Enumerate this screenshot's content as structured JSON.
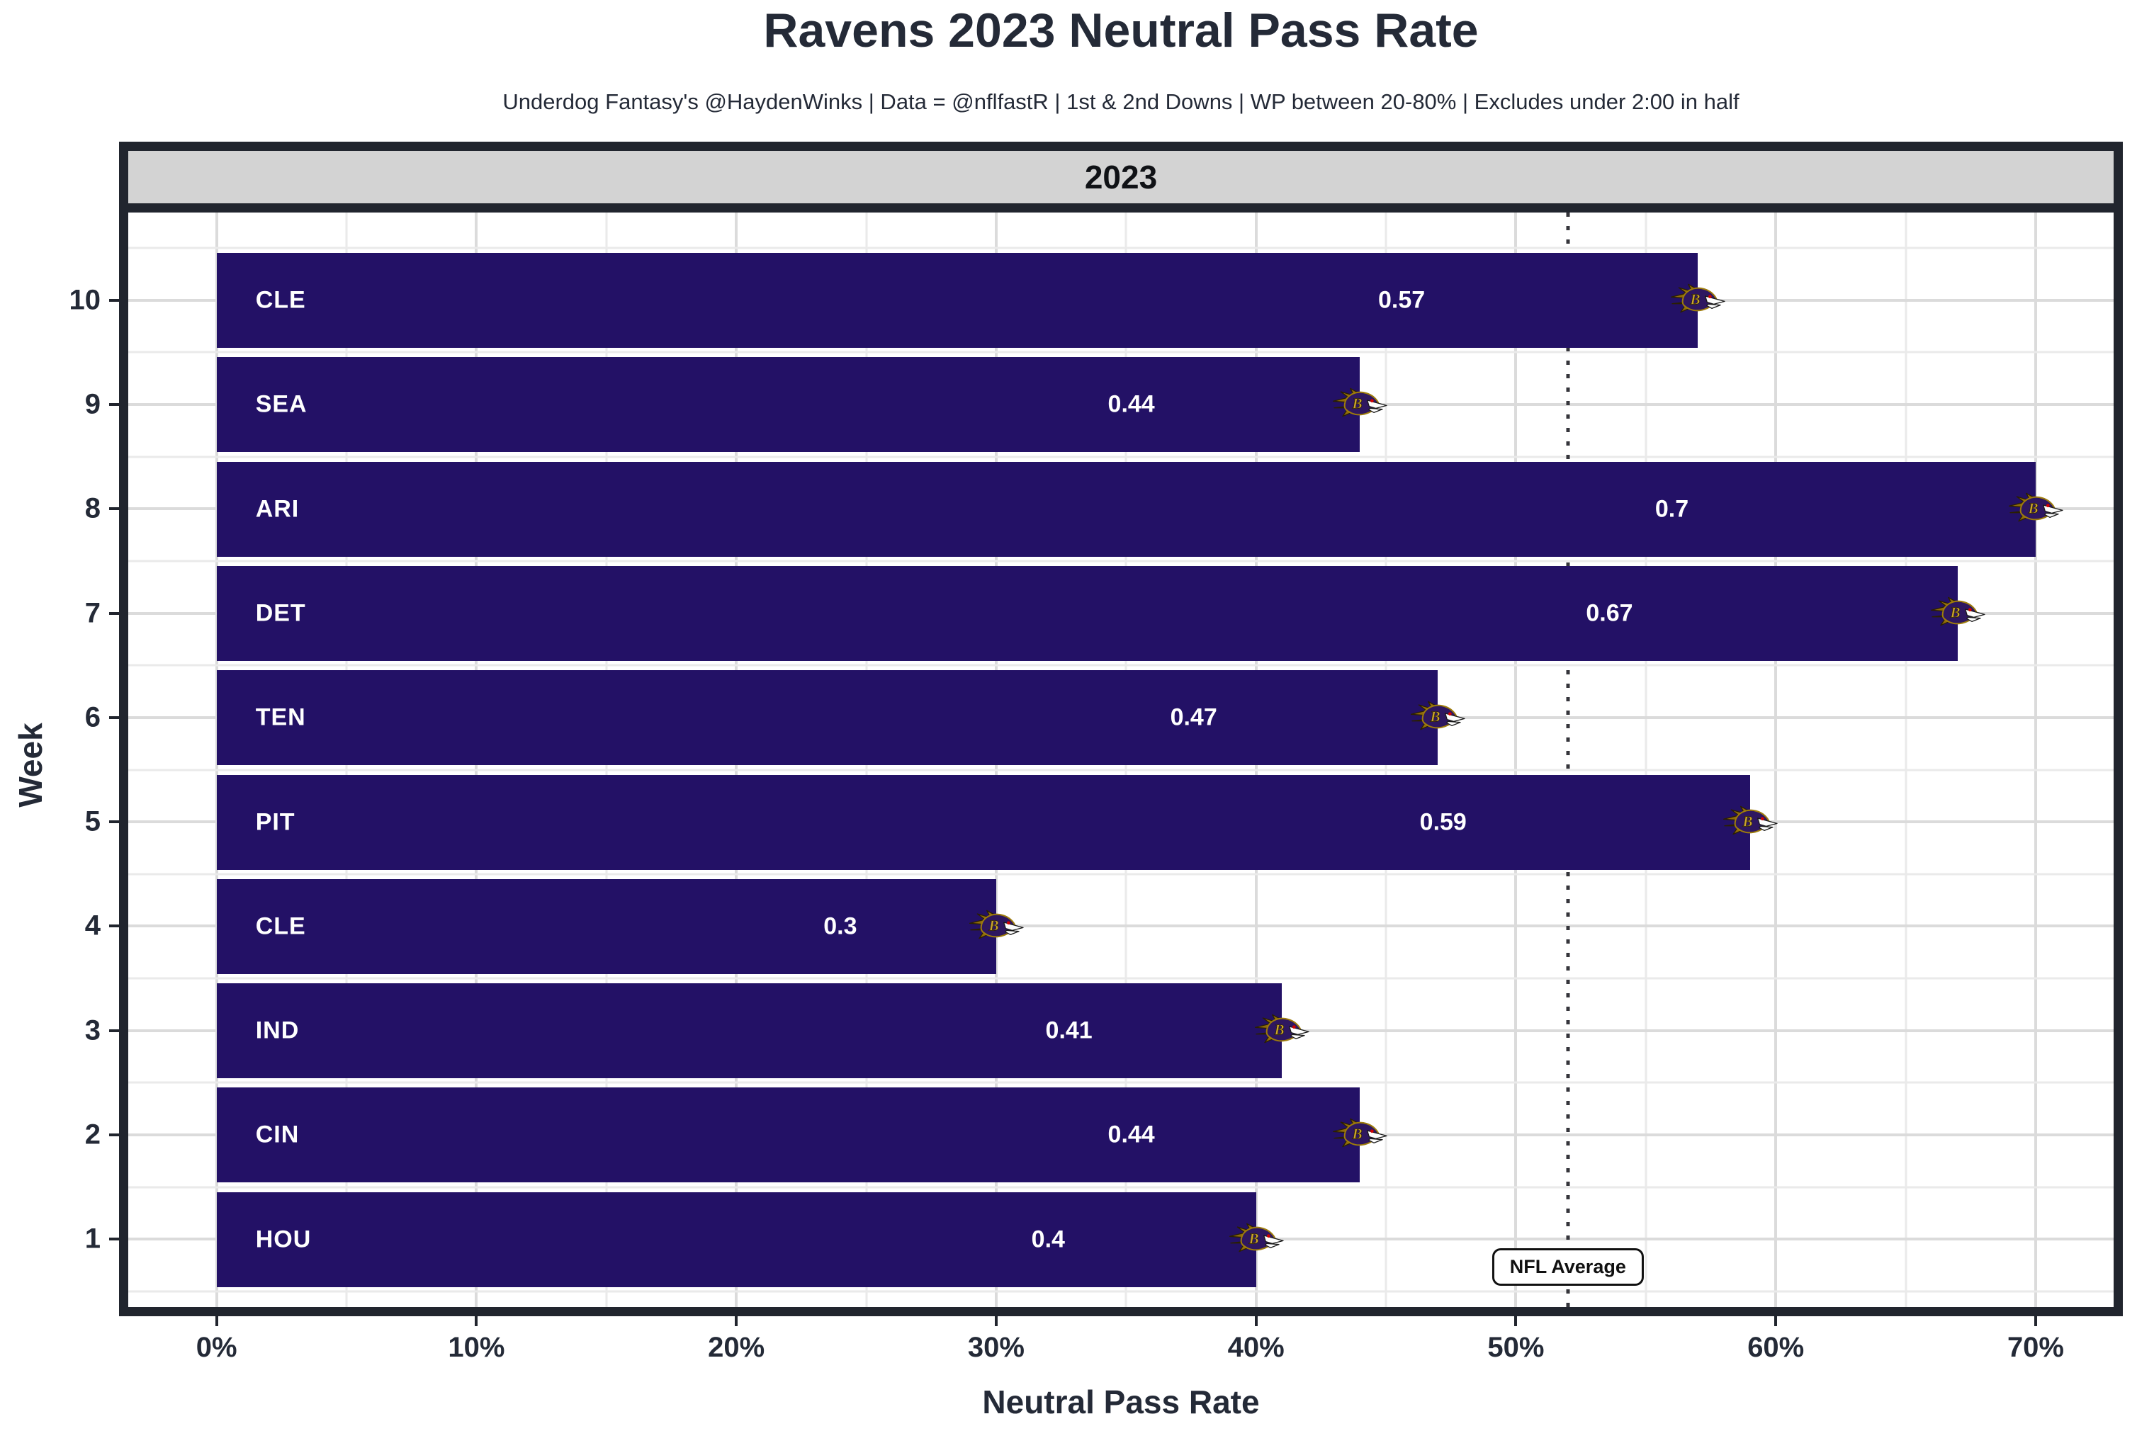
{
  "title": "Ravens 2023 Neutral Pass Rate",
  "subtitle": "Underdog Fantasy's @HaydenWinks | Data = @nflfastR | 1st & 2nd Downs | WP between 20-80% | Excludes under 2:00 in half",
  "facet_label": "2023",
  "chart_data": {
    "type": "bar",
    "orientation": "horizontal",
    "title": "Ravens 2023 Neutral Pass Rate",
    "xlabel": "Neutral Pass Rate",
    "ylabel": "Week",
    "xlim": [
      0,
      0.7
    ],
    "grid": true,
    "x_ticks": [
      "0%",
      "10%",
      "20%",
      "30%",
      "40%",
      "50%",
      "60%",
      "70%"
    ],
    "x_tick_values": [
      0,
      0.1,
      0.2,
      0.3,
      0.4,
      0.5,
      0.6,
      0.7
    ],
    "bars": [
      {
        "week": "10",
        "opponent": "CLE",
        "value": 0.57,
        "value_label": "0.57"
      },
      {
        "week": "9",
        "opponent": "SEA",
        "value": 0.44,
        "value_label": "0.44"
      },
      {
        "week": "8",
        "opponent": "ARI",
        "value": 0.7,
        "value_label": "0.7"
      },
      {
        "week": "7",
        "opponent": "DET",
        "value": 0.67,
        "value_label": "0.67"
      },
      {
        "week": "6",
        "opponent": "TEN",
        "value": 0.47,
        "value_label": "0.47"
      },
      {
        "week": "5",
        "opponent": "PIT",
        "value": 0.59,
        "value_label": "0.59"
      },
      {
        "week": "4",
        "opponent": "CLE",
        "value": 0.3,
        "value_label": "0.3"
      },
      {
        "week": "3",
        "opponent": "IND",
        "value": 0.41,
        "value_label": "0.41"
      },
      {
        "week": "2",
        "opponent": "CIN",
        "value": 0.44,
        "value_label": "0.44"
      },
      {
        "week": "1",
        "opponent": "HOU",
        "value": 0.4,
        "value_label": "0.4"
      }
    ],
    "reference_line": {
      "label": "NFL Average",
      "value": 0.52,
      "style": "dotted"
    },
    "bar_icon": "ravens-logo"
  },
  "colors": {
    "bar_fill": "#231166",
    "strip_background": "#D3D3D3",
    "frame": "#21252E",
    "text_dark": "#242A37",
    "gridline_major": "#DBDBDB",
    "gridline_minor": "#EAEAEA",
    "ravens_purple": "#2E1760",
    "ravens_gold": "#9E7C0C",
    "label_text": "#FFFFFF"
  }
}
